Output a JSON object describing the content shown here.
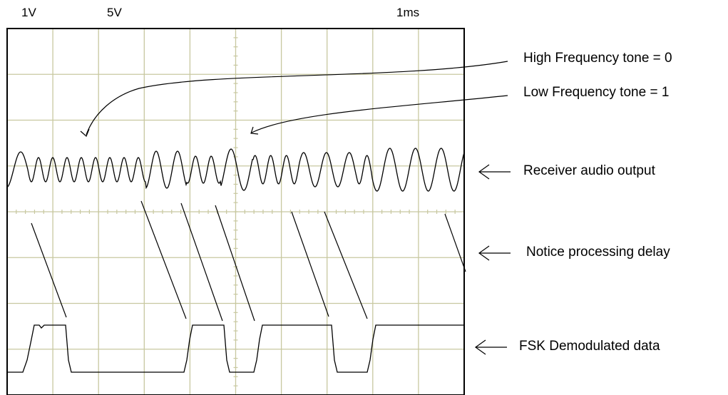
{
  "header": {
    "ch1_scale": "1V",
    "ch2_scale": "5V",
    "timebase": "1ms"
  },
  "annotations": {
    "high_tone": "High Frequency tone = 0",
    "low_tone": "Low Frequency tone = 1",
    "receiver": "Receiver audio output",
    "delay": "Notice processing delay",
    "fsk": "FSK Demodulated data"
  },
  "colors": {
    "grid": "#c8c8a0",
    "trace": "#000000",
    "frame": "#000000",
    "background": "#ffffff"
  },
  "icons": {
    "annotation_arrow": "left-arrow"
  }
}
